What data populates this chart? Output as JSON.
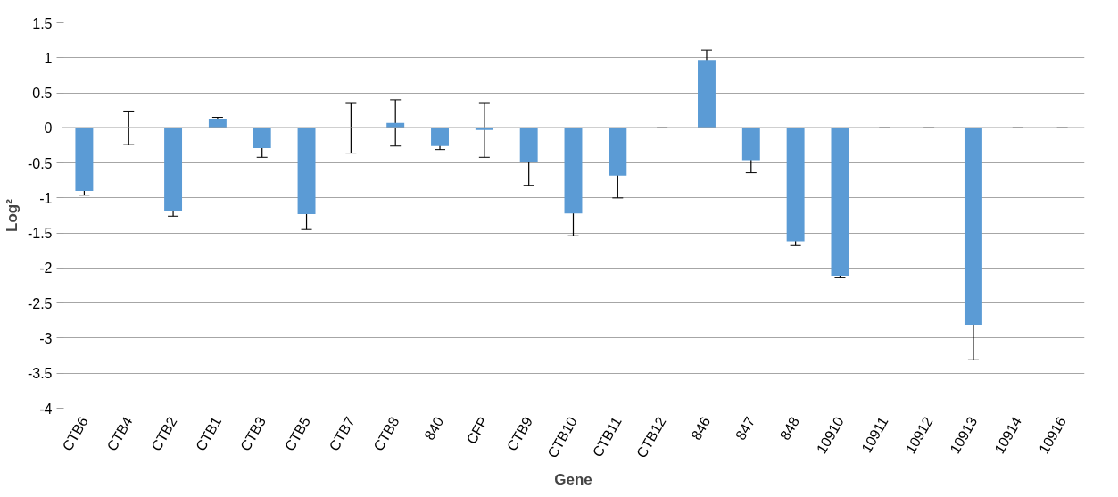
{
  "chart_data": {
    "type": "bar",
    "xlabel": "Gene",
    "ylabel": "Log²",
    "categories": [
      "CTB6",
      "CTB4",
      "CTB2",
      "CTB1",
      "CTB3",
      "CTB5",
      "CTB7",
      "CTB8",
      "840",
      "CFP",
      "CTB9",
      "CTB10",
      "CTB11",
      "CTB12",
      "846",
      "847",
      "848",
      "10910",
      "10911",
      "10912",
      "10913",
      "10914",
      "10916"
    ],
    "values": [
      -0.9,
      0,
      -1.18,
      0.13,
      -0.29,
      -1.23,
      0,
      0.07,
      -0.26,
      -0.03,
      -0.48,
      -1.22,
      -0.68,
      0,
      0.97,
      -0.46,
      -1.62,
      -2.11,
      0,
      0,
      -2.81,
      0,
      0
    ],
    "errors": [
      0.06,
      0.24,
      0.08,
      0.02,
      0.13,
      0.22,
      0.36,
      0.33,
      0.05,
      0.39,
      0.34,
      0.32,
      0.32,
      0,
      0.14,
      0.18,
      0.06,
      0.03,
      0,
      0,
      0.5,
      0,
      0
    ],
    "color": "#5b9bd5",
    "ylim": [
      -4,
      1.5
    ],
    "yticks": [
      -4,
      -3.5,
      -3,
      -2.5,
      -2,
      -1.5,
      -1,
      -0.5,
      0,
      0.5,
      1,
      1.5
    ],
    "grid": "y"
  }
}
